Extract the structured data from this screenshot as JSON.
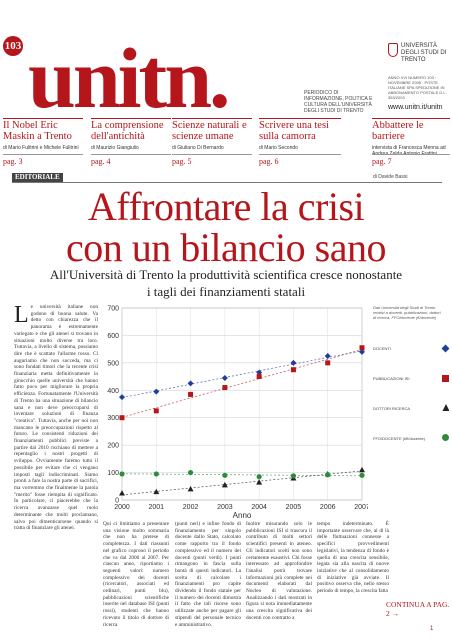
{
  "masthead": {
    "issue": "103",
    "logo": "unitn.",
    "tagline": "PERIODICO DI INFORMAZIONE, POLITICA E CULTURA DELL'UNIVERSITÀ DEGLI STUDI DI TRENTO",
    "university": "UNIVERSITÀ DEGLI STUDI DI TRENTO",
    "meta": "ANNO XVI NUMERO 103 · NOVEMBRE 2008 · POSTE ITALIANE SPA SPEDIZIONE IN ABBONAMENTO POSTALE D.L. 353/2003",
    "website": "www.unitn.it/unitn"
  },
  "teasers": [
    {
      "title": "Il Nobel Eric Maskin a Trento",
      "authors": "di Mario Fulitrini e Michele Fulitrini",
      "page": "pag. 3"
    },
    {
      "title": "La comprensione dell'antichità",
      "authors": "di Maurizio Giangiulio",
      "page": "pag. 4"
    },
    {
      "title": "Scienze naturali e scienze umane",
      "authors": "di Giuliano Di Bernardo",
      "page": "pag. 5"
    },
    {
      "title": "Scrivere una tesi sulla camorra",
      "authors": "di Mario Secondo",
      "page": "pag. 6"
    },
    {
      "title": "Abbattere le barriere",
      "authors": "intervista di Francesca Menna ad Andrea Zelda Antonio Frattini",
      "page": "pag. 7"
    }
  ],
  "editorial": {
    "section": "EDITORIALE",
    "byline": "di Davide Bassi",
    "headline_line1": "Affrontare la crisi",
    "headline_line2": "con un bilancio sano",
    "subhead_line1": "All'Università di Trento la produttività scientifica cresce nonostante",
    "subhead_line2": "i tagli dei finanziamenti statali",
    "dropcap": "L",
    "col1": "e università italiane non godono di buona salute. Va detto con chiarezza che il panorama è estremamente variegato e che gli atenei si trovano in situazioni molto diverse tra loro. Tuttavia, a livello di sistema, possiamo dire che è scattato l'allarme rosso. Ci auguriamo che non succeda, ma ci sono fondati timori che la recente crisi finanziaria metta definitivamente in ginocchio quelle università che hanno fatto poco per migliorare la propria efficienza. Fortunatamente l'Università di Trento ha una situazione di bilancio sana e non deve preoccuparsi di inventare soluzioni di finanza \"creativa\". Tuttavia, anche per noi non mancano le preoccupazioni rispetto al futuro. Le consistenti riduzioni dei finanziamenti pubblici previste a partire dal 2010 rischiano di mettere a repentaglio i nostri progetti di sviluppo. Ovviamente faremo tutto il possibile per evitare che ci vengano imposti tagli indiscriminati. Siamo pronti a fare la nostra parte di sacrifici, ma vorremmo che finalmente la parola \"merito\" fosse riempita di significato. In particolare, ci piacerebbe che la ricerca avanzasse quel ruolo determinante che molti proclamano, salvo poi dimenticarsene quando si tratta di finanziare gli atenei.",
    "col2": "Qui ci limitiamo a presentare una visione molto sommaria che non ha pretese di completezza. I dati riassunti nel grafico coprono il periodo che va dal 2000 al 2007. Per ciascun anno, riportiamo i seguenti valori: numero complessivo dei docenti (ricercatori, associati ed ordinari, punti blu), pubblicazioni scientifiche inserite nel database ISI (punti rossi), studenti che hanno ricevuto il titolo di dottore di ricerca",
    "col3": "(punti neri) e infine fondo di finanziamento per singolo docente dallo Stato, calcolato come rapporto tra il fondo complessivo ed il numero dei docenti (punti verdi). I punti rimangono in fascia sulla bontà di questi indicatori. La scelta di calcolare i finanziamenti pro capite dividendo il fondo statale per il numero dei docenti dimostra il fatto che tali risorse sono utilizzate anche per pagare gli stipendi del personale tecnico e amministrativo.",
    "col4": "Inoltre misurando solo le pubblicazioni ISI si trascura il contributo di molti settori scientifici presenti in ateneo. Gli indicatori scelti non sono certamente esaustivi. Chi fosse interessato ad approfondire l'analisi potrà trovare informazioni più complete nei documenti elaborati dal Nucleo di valutazione. Analizzando i dati mostrati in figura si nota immediatamente una crescita significativa dei docenti con contratto a",
    "col5": "tempo indeterminato. È importante osservare che, al di là delle fluttuazioni connesse a specifici provvedimenti legislativi, la tendenza di fondo è quella di una crescita sensibile, legata sia alla nascita di nuove iniziative che al consolidamento di iniziative già avviate. Il positivo osserva che, nello stesso periodo di tempo, la crescita fatta",
    "continua": "CONTINUA A PAG. 2 →",
    "page_number": "1"
  },
  "chart_data": {
    "type": "scatter",
    "title": "",
    "xlabel": "Anno",
    "ylabel": "",
    "x": [
      2000,
      2001,
      2002,
      2003,
      2004,
      2005,
      2006,
      2007
    ],
    "xlim": [
      2000,
      2007
    ],
    "ylim": [
      0,
      700
    ],
    "yticks": [
      0,
      100,
      200,
      300,
      400,
      500,
      600,
      700
    ],
    "grid": true,
    "legend_note": "Dati Università degli Studi di Trento relativi a docenti, pubblicazioni, dottori di ricerca, FFO/docente (€/docente)",
    "series": [
      {
        "name": "DOCENTI",
        "color": "#1f3f9a",
        "marker": "diamond",
        "values": [
          375,
          395,
          425,
          445,
          465,
          500,
          525,
          540
        ]
      },
      {
        "name": "PUBBLICAZIONI ISI",
        "color": "#b5161b",
        "marker": "square",
        "values": [
          300,
          325,
          385,
          410,
          450,
          475,
          500,
          555
        ]
      },
      {
        "name": "DOTTORI RICERCA",
        "color": "#222222",
        "marker": "triangle",
        "values": [
          25,
          30,
          40,
          55,
          65,
          80,
          95,
          110
        ]
      },
      {
        "name": "FFO/DOCENTE (k€/docente)",
        "color": "#2e8b3e",
        "marker": "circle",
        "values": [
          95,
          95,
          100,
          90,
          85,
          88,
          92,
          90
        ]
      }
    ]
  }
}
